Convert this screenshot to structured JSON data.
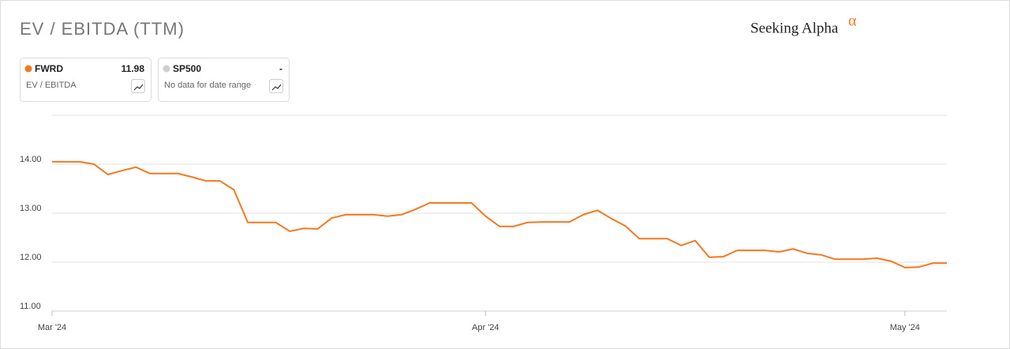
{
  "chart_data": {
    "type": "line",
    "title": "EV / EBITDA (TTM)",
    "brand": {
      "name": "Seeking Alpha",
      "mark": "α"
    },
    "x": [
      0,
      2,
      3,
      4,
      5,
      6,
      7,
      9,
      10,
      11,
      12,
      13,
      14,
      16,
      17,
      18,
      19,
      20,
      21,
      23,
      24,
      25,
      26,
      27,
      30,
      31,
      32,
      33,
      34,
      35,
      37,
      38,
      39,
      40,
      41,
      42,
      44,
      45,
      46,
      47,
      48,
      49,
      51,
      52,
      53,
      54,
      55,
      56,
      58,
      59,
      60,
      61,
      62,
      63,
      64
    ],
    "series": [
      {
        "name": "FWRD",
        "color": "#f47920",
        "legend_value": 11.98,
        "legend_note": "EV / EBITDA",
        "values": [
          14.05,
          14.05,
          14.0,
          13.79,
          13.87,
          13.94,
          13.81,
          13.81,
          13.74,
          13.66,
          13.66,
          13.48,
          12.81,
          12.81,
          12.63,
          12.69,
          12.68,
          12.9,
          12.97,
          12.97,
          12.94,
          12.97,
          13.08,
          13.21,
          13.21,
          12.94,
          12.73,
          12.73,
          12.81,
          12.82,
          12.82,
          12.97,
          13.06,
          12.89,
          12.74,
          12.48,
          12.48,
          12.34,
          12.44,
          12.1,
          12.11,
          12.24,
          12.24,
          12.21,
          12.27,
          12.18,
          12.15,
          12.06,
          12.06,
          12.08,
          12.02,
          11.89,
          11.9,
          11.98,
          11.98
        ]
      }
    ],
    "comparisons": [
      {
        "name": "SP500",
        "color": "#cfcfcf",
        "legend_value": "-",
        "legend_note": "No data for date range"
      }
    ],
    "xlim": [
      0,
      64
    ],
    "xticks": [
      {
        "value": 0,
        "label": "Mar '24"
      },
      {
        "value": 31,
        "label": "Apr '24"
      },
      {
        "value": 61,
        "label": "May '24"
      }
    ],
    "ylim": [
      11,
      15
    ],
    "yticks": [
      {
        "value": 11,
        "label": "11.00"
      },
      {
        "value": 12,
        "label": "12.00"
      },
      {
        "value": 13,
        "label": "13.00"
      },
      {
        "value": 14,
        "label": "14.00"
      }
    ],
    "grid": true
  }
}
